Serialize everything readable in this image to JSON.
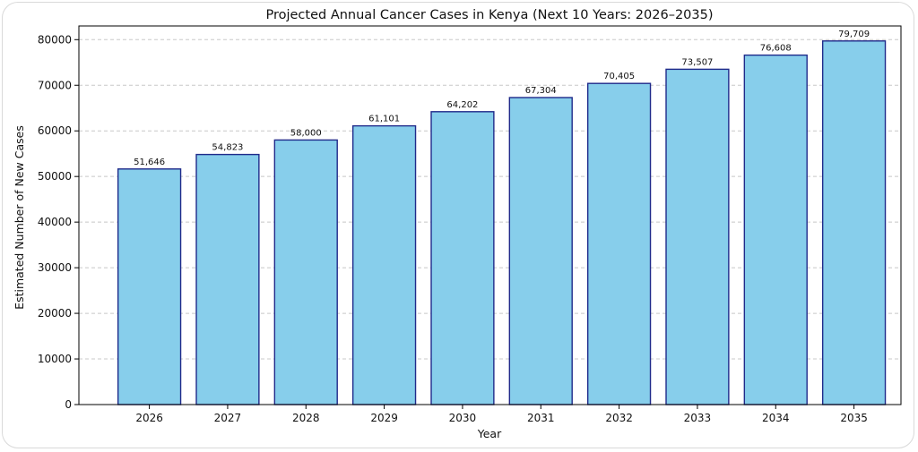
{
  "chart_data": {
    "type": "bar",
    "title": "Projected Annual Cancer Cases in Kenya (Next 10 Years: 2026–2035)",
    "xlabel": "Year",
    "ylabel": "Estimated Number of New Cases",
    "categories": [
      "2026",
      "2027",
      "2028",
      "2029",
      "2030",
      "2031",
      "2032",
      "2033",
      "2034",
      "2035"
    ],
    "values": [
      51646,
      54823,
      58000,
      61101,
      64202,
      67304,
      70405,
      73507,
      76608,
      79709
    ],
    "value_labels": [
      "51,646",
      "54,823",
      "58,000",
      "61,101",
      "64,202",
      "67,304",
      "70,405",
      "73,507",
      "76,608",
      "79,709"
    ],
    "ylim": [
      0,
      83000
    ],
    "yticks": [
      0,
      10000,
      20000,
      30000,
      40000,
      50000,
      60000,
      70000,
      80000
    ],
    "ytick_labels": [
      "0",
      "10000",
      "20000",
      "30000",
      "40000",
      "50000",
      "60000",
      "70000",
      "80000"
    ],
    "grid": "y-dashed",
    "legend": "none",
    "colors": {
      "bar_fill": "#87CEEB",
      "bar_edge": "#1f2a8a"
    }
  }
}
